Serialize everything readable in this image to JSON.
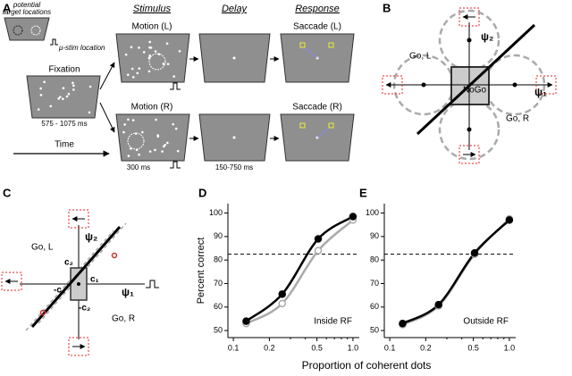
{
  "panel_labels": [
    "A",
    "B",
    "C",
    "D",
    "E"
  ],
  "panel_a": {
    "inset_title": [
      "potential",
      "target locations"
    ],
    "ustim": "μ-stim location",
    "fixation": "Fixation",
    "fixation_time": "575 - 1075 ms",
    "time": "Time",
    "headers": [
      "Stimulus",
      "Delay",
      "Response"
    ],
    "motion_l": "Motion (L)",
    "motion_r": "Motion (R)",
    "saccade_l": "Saccade (L)",
    "saccade_r": "Saccade (R)",
    "stim_time": "300 ms",
    "delay_time": "150-750 ms"
  },
  "panel_b": {
    "go_l": "Go, L",
    "go_r": "Go, R",
    "nogo": "NoGo",
    "psi1": "ψ₁",
    "psi2": "ψ₂"
  },
  "panel_c": {
    "go_l": "Go, L",
    "go_r": "Go, R",
    "psi1": "ψ₁",
    "psi2": "ψ₂",
    "c2": "c₂",
    "neg_c2": "-c₂",
    "c1": "c₁",
    "neg_c1": "-c₁"
  },
  "shared_xlabel": "Proportion of coherent dots",
  "chart_data": [
    {
      "type": "line",
      "ylabel": "Percent correct",
      "annotation": "Inside RF",
      "x_scale": "log",
      "xlim": [
        0.09,
        1.13
      ],
      "ylim": [
        47,
        104
      ],
      "xticks": [
        0.1,
        0.2,
        0.5,
        {
          "value": 1,
          "label": "1.0"
        }
      ],
      "yticks": [
        50,
        60,
        70,
        80,
        90,
        100
      ],
      "reference_line": 82.5,
      "x": [
        0.128,
        0.256,
        0.512,
        1
      ],
      "series": [
        {
          "color": "#000000",
          "fill": "#000000",
          "values": [
            54,
            65.5,
            89,
            98.5
          ]
        },
        {
          "color": "#aaaaaa",
          "fill": "#ffffff",
          "values": [
            53,
            61.5,
            84,
            97
          ]
        }
      ]
    },
    {
      "type": "line",
      "annotation": "Outside RF",
      "x_scale": "log",
      "xlim": [
        0.09,
        1.13
      ],
      "ylim": [
        47,
        104
      ],
      "xticks": [
        0.1,
        0.2,
        0.5,
        {
          "value": 1,
          "label": "1.0"
        }
      ],
      "yticks": [
        50,
        60,
        70,
        80,
        90,
        100
      ],
      "reference_line": 82.5,
      "x": [
        0.128,
        0.256,
        0.512,
        1
      ],
      "series": [
        {
          "color": "#000000",
          "fill": "#000000",
          "values": [
            53,
            61,
            83,
            97
          ]
        },
        {
          "color": "#aaaaaa",
          "fill": "#ffffff",
          "values": [
            52.5,
            60.5,
            82.5,
            97.5
          ]
        }
      ]
    }
  ]
}
